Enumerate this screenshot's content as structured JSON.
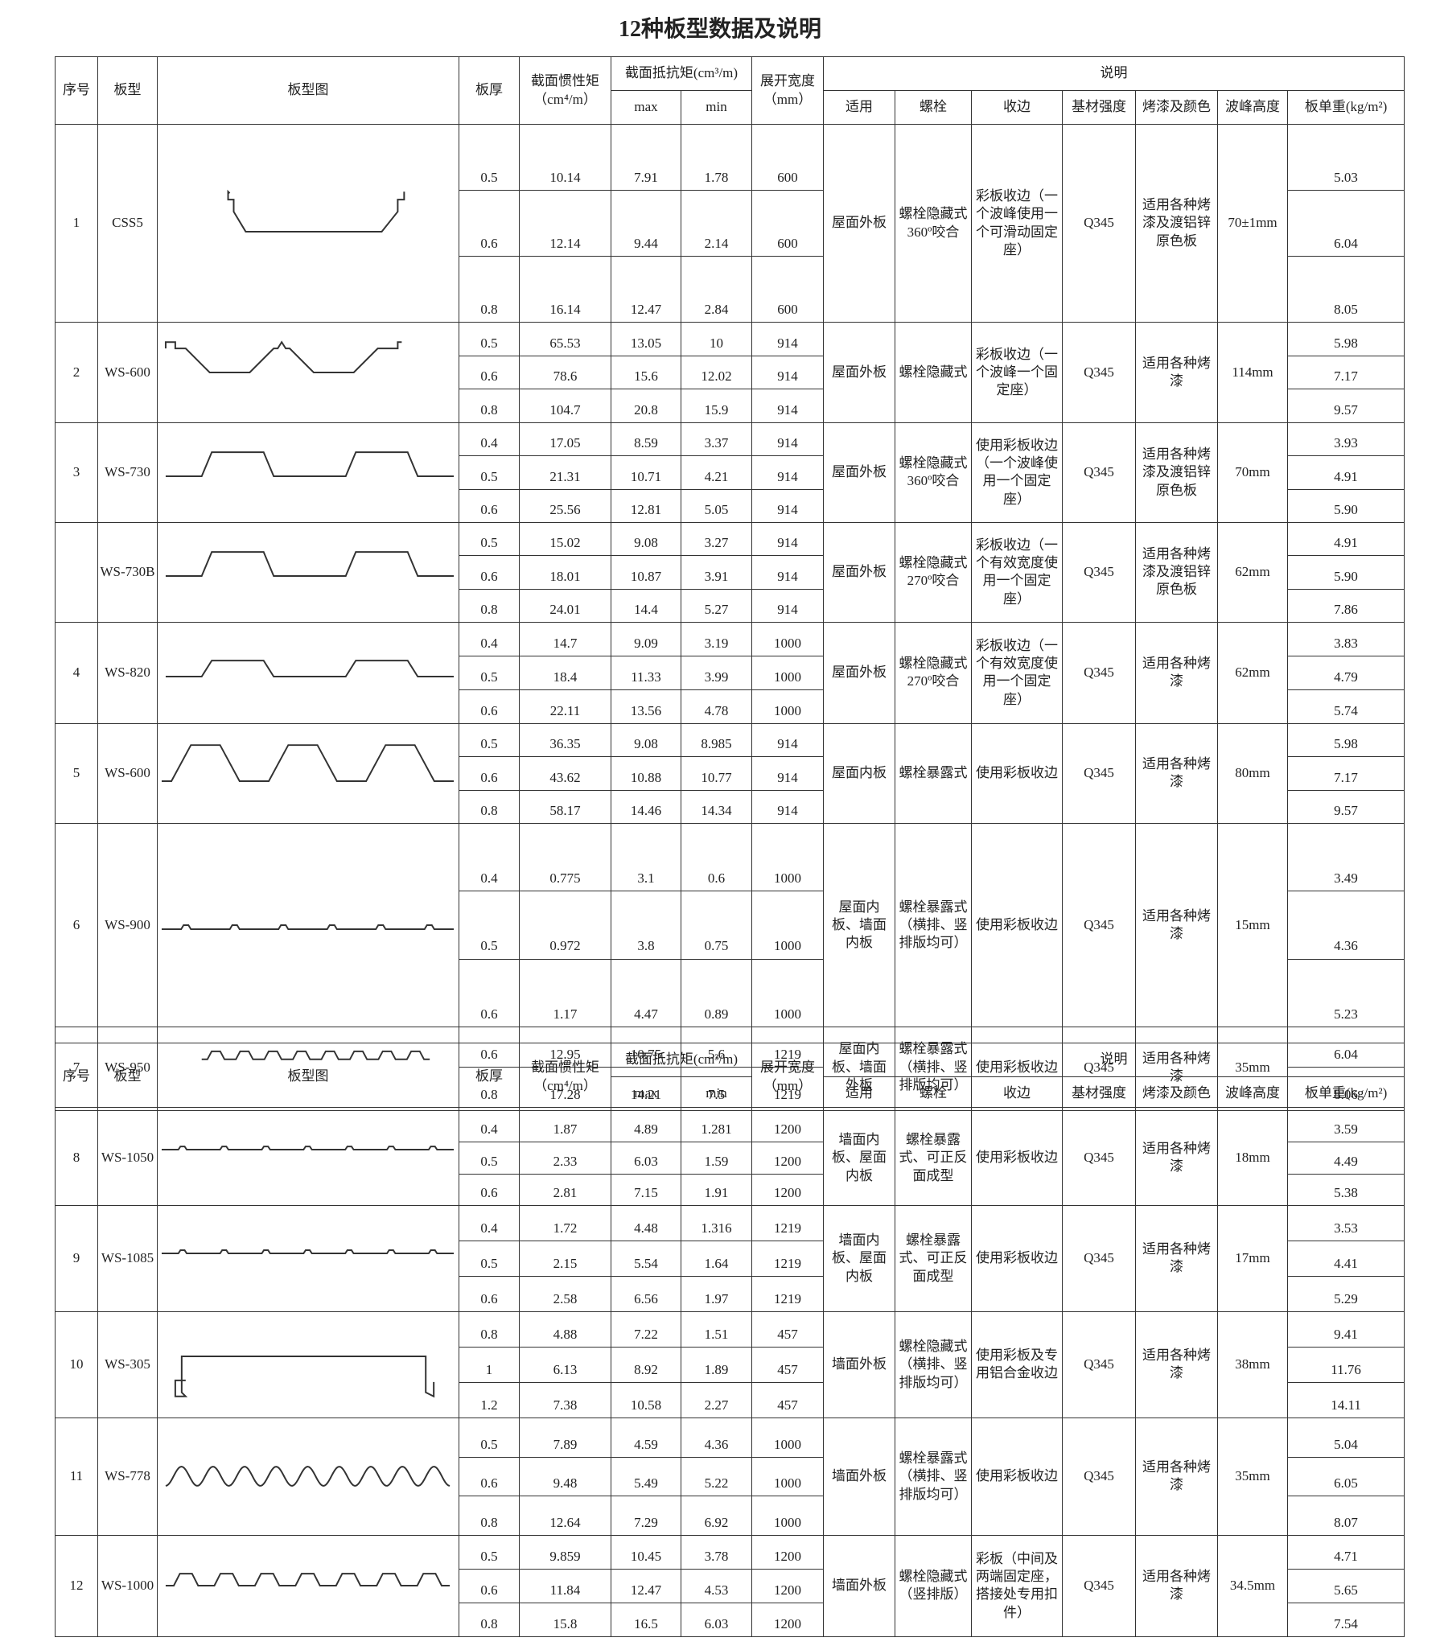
{
  "title": "12种板型数据及说明",
  "tables": [
    {
      "header": {
        "no": "序号",
        "model": "板型",
        "drawing": "板型图",
        "thickness": "板厚",
        "inertia": "截面惯性矩（cm⁴/m）",
        "resistance": "截面抵抗矩(cm³/m)",
        "max": "max",
        "min": "min",
        "width": "展开宽度（mm）",
        "notes": "说明",
        "use": "适用",
        "bolt": "螺栓",
        "edge": "收边",
        "strength": "基材强度",
        "paint": "烤漆及颜色",
        "height": "波峰高度",
        "weight": "板单重(kg/m²)"
      },
      "groups": [
        {
          "no": "1",
          "model": "CSS5",
          "rows": [
            [
              "0.5",
              "10.14",
              "7.91",
              "1.78",
              "600",
              "5.03"
            ],
            [
              "0.6",
              "12.14",
              "9.44",
              "2.14",
              "600",
              "6.04"
            ],
            [
              "0.8",
              "16.14",
              "12.47",
              "2.84",
              "600",
              "8.05"
            ]
          ],
          "use": "屋面外板",
          "bolt": "螺栓隐藏式360º咬合",
          "edge": "彩板收边（一个波峰使用一个可滑动固定座）",
          "strength": "Q345",
          "paint": "适用各种烤漆及渡铝锌原色板",
          "height": "70±1mm"
        },
        {
          "no": "2",
          "model": "WS-600",
          "rows": [
            [
              "0.5",
              "65.53",
              "13.05",
              "10",
              "914",
              "5.98"
            ],
            [
              "0.6",
              "78.6",
              "15.6",
              "12.02",
              "914",
              "7.17"
            ],
            [
              "0.8",
              "104.7",
              "20.8",
              "15.9",
              "914",
              "9.57"
            ]
          ],
          "use": "屋面外板",
          "bolt": "螺栓隐藏式",
          "edge": "彩板收边（一个波峰一个固定座）",
          "strength": "Q345",
          "paint": "适用各种烤漆",
          "height": "114mm"
        },
        {
          "no": "3",
          "model": "WS-730",
          "rows": [
            [
              "0.4",
              "17.05",
              "8.59",
              "3.37",
              "914",
              "3.93"
            ],
            [
              "0.5",
              "21.31",
              "10.71",
              "4.21",
              "914",
              "4.91"
            ],
            [
              "0.6",
              "25.56",
              "12.81",
              "5.05",
              "914",
              "5.90"
            ]
          ],
          "use": "屋面外板",
          "bolt": "螺栓隐藏式360º咬合",
          "edge": "使用彩板收边（一个波峰使用一个固定座）",
          "strength": "Q345",
          "paint": "适用各种烤漆及渡铝锌原色板",
          "height": "70mm"
        },
        {
          "no": null,
          "model": "WS-730B",
          "rows": [
            [
              "0.5",
              "15.02",
              "9.08",
              "3.27",
              "914",
              "4.91"
            ],
            [
              "0.6",
              "18.01",
              "10.87",
              "3.91",
              "914",
              "5.90"
            ],
            [
              "0.8",
              "24.01",
              "14.4",
              "5.27",
              "914",
              "7.86"
            ]
          ],
          "use": "屋面外板",
          "bolt": "螺栓隐藏式270º咬合",
          "edge": "彩板收边（一个有效宽度使用一个固定座）",
          "strength": "Q345",
          "paint": "适用各种烤漆及渡铝锌原色板",
          "height": "62mm"
        },
        {
          "no": "4",
          "model": "WS-820",
          "rows": [
            [
              "0.4",
              "14.7",
              "9.09",
              "3.19",
              "1000",
              "3.83"
            ],
            [
              "0.5",
              "18.4",
              "11.33",
              "3.99",
              "1000",
              "4.79"
            ],
            [
              "0.6",
              "22.11",
              "13.56",
              "4.78",
              "1000",
              "5.74"
            ]
          ],
          "use": "屋面外板",
          "bolt": "螺栓隐藏式270º咬合",
          "edge": "彩板收边（一个有效宽度使用一个固定座）",
          "strength": "Q345",
          "paint": "适用各种烤漆",
          "height": "62mm"
        },
        {
          "no": "5",
          "model": "WS-600",
          "rows": [
            [
              "0.5",
              "36.35",
              "9.08",
              "8.985",
              "914",
              "5.98"
            ],
            [
              "0.6",
              "43.62",
              "10.88",
              "10.77",
              "914",
              "7.17"
            ],
            [
              "0.8",
              "58.17",
              "14.46",
              "14.34",
              "914",
              "9.57"
            ]
          ],
          "use": "屋面内板",
          "bolt": "螺栓暴露式",
          "edge": "使用彩板收边",
          "strength": "Q345",
          "paint": "适用各种烤漆",
          "height": "80mm"
        },
        {
          "no": "6",
          "model": "WS-900",
          "rows": [
            [
              "0.4",
              "0.775",
              "3.1",
              "0.6",
              "1000",
              "3.49"
            ],
            [
              "0.5",
              "0.972",
              "3.8",
              "0.75",
              "1000",
              "4.36"
            ],
            [
              "0.6",
              "1.17",
              "4.47",
              "0.89",
              "1000",
              "5.23"
            ]
          ],
          "use": "屋面内板、墙面内板",
          "bolt": "螺栓暴露式（横排、竖排版均可）",
          "edge": "使用彩板收边",
          "strength": "Q345",
          "paint": "适用各种烤漆",
          "height": "15mm"
        },
        {
          "no": "7",
          "model": "WS-950",
          "rows": [
            [
              "0.6",
              "12.95",
              "10.75",
              "5.6",
              "1219",
              "6.04"
            ],
            [
              "0.8",
              "17.28",
              "14.21",
              "7.5",
              "1219",
              "8.06"
            ]
          ],
          "use": "屋面内板、墙面外板",
          "bolt": "螺栓暴露式（横排、竖排版均可）",
          "edge": "使用彩板收边",
          "strength": "Q345",
          "paint": "适用各种烤漆",
          "height": "35mm"
        }
      ]
    },
    {
      "header": {
        "no": "序号",
        "model": "板型",
        "drawing": "板型图",
        "thickness": "板厚",
        "inertia": "截面惯性矩（cm⁴/m）",
        "resistance": "截面抵抗矩(cm³/m)",
        "max": "max",
        "min": "min",
        "width": "展开宽度（mm）",
        "notes": "说明",
        "use": "适用",
        "bolt": "螺栓",
        "edge": "收边",
        "strength": "基材强度",
        "paint": "烤漆及颜色",
        "height": "波峰高度",
        "weight": "板单重(kg/m²)"
      },
      "groups": [
        {
          "no": "8",
          "model": "WS-1050",
          "rows": [
            [
              "0.4",
              "1.87",
              "4.89",
              "1.281",
              "1200",
              "3.59"
            ],
            [
              "0.5",
              "2.33",
              "6.03",
              "1.59",
              "1200",
              "4.49"
            ],
            [
              "0.6",
              "2.81",
              "7.15",
              "1.91",
              "1200",
              "5.38"
            ]
          ],
          "use": "墙面内板、屋面内板",
          "bolt": "螺栓暴露式、可正反面成型",
          "edge": "使用彩板收边",
          "strength": "Q345",
          "paint": "适用各种烤漆",
          "height": "18mm"
        },
        {
          "no": "9",
          "model": "WS-1085",
          "rows": [
            [
              "0.4",
              "1.72",
              "4.48",
              "1.316",
              "1219",
              "3.53"
            ],
            [
              "0.5",
              "2.15",
              "5.54",
              "1.64",
              "1219",
              "4.41"
            ],
            [
              "0.6",
              "2.58",
              "6.56",
              "1.97",
              "1219",
              "5.29"
            ]
          ],
          "use": "墙面内板、屋面内板",
          "bolt": "螺栓暴露式、可正反面成型",
          "edge": "使用彩板收边",
          "strength": "Q345",
          "paint": "适用各种烤漆",
          "height": "17mm"
        },
        {
          "no": "10",
          "model": "WS-305",
          "rows": [
            [
              "0.8",
              "4.88",
              "7.22",
              "1.51",
              "457",
              "9.41"
            ],
            [
              "1",
              "6.13",
              "8.92",
              "1.89",
              "457",
              "11.76"
            ],
            [
              "1.2",
              "7.38",
              "10.58",
              "2.27",
              "457",
              "14.11"
            ]
          ],
          "use": "墙面外板",
          "bolt": "螺栓隐藏式（横排、竖排版均可）",
          "edge": "使用彩板及专用铝合金收边",
          "strength": "Q345",
          "paint": "适用各种烤漆",
          "height": "38mm"
        },
        {
          "no": "11",
          "model": "WS-778",
          "rows": [
            [
              "0.5",
              "7.89",
              "4.59",
              "4.36",
              "1000",
              "5.04"
            ],
            [
              "0.6",
              "9.48",
              "5.49",
              "5.22",
              "1000",
              "6.05"
            ],
            [
              "0.8",
              "12.64",
              "7.29",
              "6.92",
              "1000",
              "8.07"
            ]
          ],
          "use": "墙面外板",
          "bolt": "螺栓暴露式（横排、竖排版均可）",
          "edge": "使用彩板收边",
          "strength": "Q345",
          "paint": "适用各种烤漆",
          "height": "35mm"
        },
        {
          "no": "12",
          "model": "WS-1000",
          "rows": [
            [
              "0.5",
              "9.859",
              "10.45",
              "3.78",
              "1200",
              "4.71"
            ],
            [
              "0.6",
              "11.84",
              "12.47",
              "4.53",
              "1200",
              "5.65"
            ],
            [
              "0.8",
              "15.8",
              "16.5",
              "6.03",
              "1200",
              "7.54"
            ]
          ],
          "use": "墙面外板",
          "bolt": "螺栓隐藏式（竖排版）",
          "edge": "彩板（中间及两端固定座，搭接处专用扣件）",
          "strength": "Q345",
          "paint": "适用各种烤漆",
          "height": "34.5mm"
        }
      ]
    }
  ]
}
